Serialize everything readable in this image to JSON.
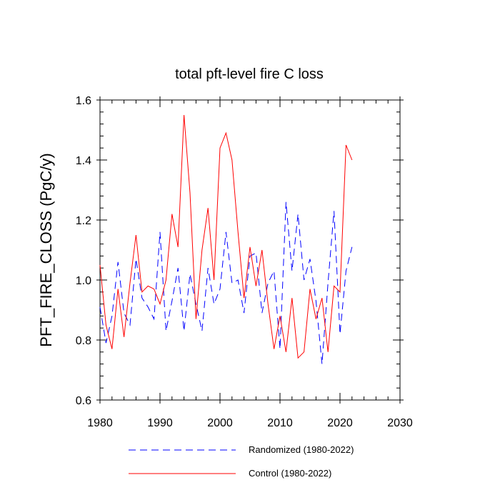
{
  "chart_data": {
    "type": "line",
    "title": "total pft-level fire C loss",
    "xlabel": "",
    "ylabel": "PFT_FIRE_CLOSS  (PgC/y)",
    "xlim": [
      1980,
      2030
    ],
    "ylim": [
      0.6,
      1.6
    ],
    "x_ticks": [
      1980,
      1990,
      2000,
      2010,
      2020,
      2030
    ],
    "x_tick_labels": [
      "1980",
      "1990",
      "2000",
      "2010",
      "2020",
      "2030"
    ],
    "y_ticks": [
      0.6,
      0.8,
      1.0,
      1.2,
      1.4,
      1.6
    ],
    "y_tick_labels": [
      "0.6",
      "0.8",
      "1.0",
      "1.2",
      "1.4",
      "1.6"
    ],
    "grid": false,
    "legend_position": "bottom",
    "x": [
      1980,
      1981,
      1982,
      1983,
      1984,
      1985,
      1986,
      1987,
      1988,
      1989,
      1990,
      1991,
      1992,
      1993,
      1994,
      1995,
      1996,
      1997,
      1998,
      1999,
      2000,
      2001,
      2002,
      2003,
      2004,
      2005,
      2006,
      2007,
      2008,
      2009,
      2010,
      2011,
      2012,
      2013,
      2014,
      2015,
      2016,
      2017,
      2018,
      2019,
      2020,
      2021,
      2022
    ],
    "series": [
      {
        "name": "Randomized (1980-2022)",
        "color": "#0000ff",
        "style": "dashed",
        "values": [
          0.91,
          0.79,
          0.88,
          1.06,
          0.89,
          0.85,
          1.07,
          0.94,
          0.91,
          0.87,
          1.16,
          0.83,
          0.93,
          1.04,
          0.83,
          1.02,
          0.92,
          0.83,
          1.04,
          0.92,
          0.97,
          1.16,
          0.99,
          1.0,
          0.89,
          1.08,
          1.09,
          0.89,
          0.99,
          1.03,
          0.77,
          1.26,
          1.03,
          1.22,
          1.0,
          1.07,
          0.93,
          0.72,
          0.99,
          1.23,
          0.82,
          1.03,
          1.11
        ]
      },
      {
        "name": "Control (1980-2022)",
        "color": "#ff0000",
        "style": "solid",
        "values": [
          1.05,
          0.85,
          0.77,
          0.97,
          0.81,
          0.99,
          1.15,
          0.96,
          0.98,
          0.97,
          0.92,
          1.0,
          1.22,
          1.11,
          1.55,
          1.29,
          0.87,
          1.1,
          1.24,
          1.0,
          1.44,
          1.49,
          1.4,
          1.16,
          0.94,
          1.11,
          0.98,
          1.1,
          0.92,
          0.77,
          0.88,
          0.76,
          0.94,
          0.74,
          0.76,
          0.97,
          0.87,
          0.94,
          0.76,
          0.98,
          0.96,
          1.45,
          1.4
        ]
      }
    ]
  }
}
